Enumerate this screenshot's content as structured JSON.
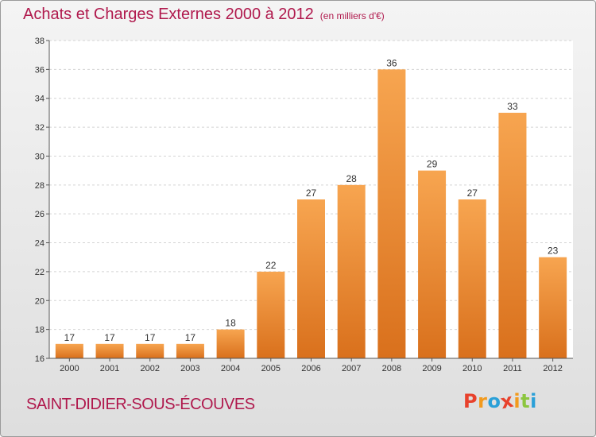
{
  "chart_data": {
    "type": "bar",
    "title": "Achats et Charges Externes 2000 à 2012",
    "subtitle": "(en milliers d'€)",
    "categories": [
      "2000",
      "2001",
      "2002",
      "2003",
      "2004",
      "2005",
      "2006",
      "2007",
      "2008",
      "2009",
      "2010",
      "2011",
      "2012"
    ],
    "values": [
      17,
      17,
      17,
      17,
      18,
      22,
      27,
      28,
      36,
      29,
      27,
      33,
      23
    ],
    "data_labels": [
      "17",
      "17",
      "17",
      "17",
      "18",
      "22",
      "27",
      "28",
      "36",
      "29",
      "27",
      "33",
      "23"
    ],
    "ylim": [
      16,
      38
    ],
    "yticks": [
      16,
      18,
      20,
      22,
      24,
      26,
      28,
      30,
      32,
      34,
      36,
      38
    ],
    "grid": true,
    "bar_color_top": "#f7a550",
    "bar_color_bottom": "#d9701c",
    "text_color": "#b0194d"
  },
  "commune": "SAINT-DIDIER-SOUS-ÉCOUVES",
  "logo": {
    "text": "Proxiti",
    "colors": [
      "#e8412c",
      "#f29a1d",
      "#2aa0d8",
      "#e8412c",
      "#f29a1d",
      "#8cc63f",
      "#2aa0d8"
    ]
  }
}
